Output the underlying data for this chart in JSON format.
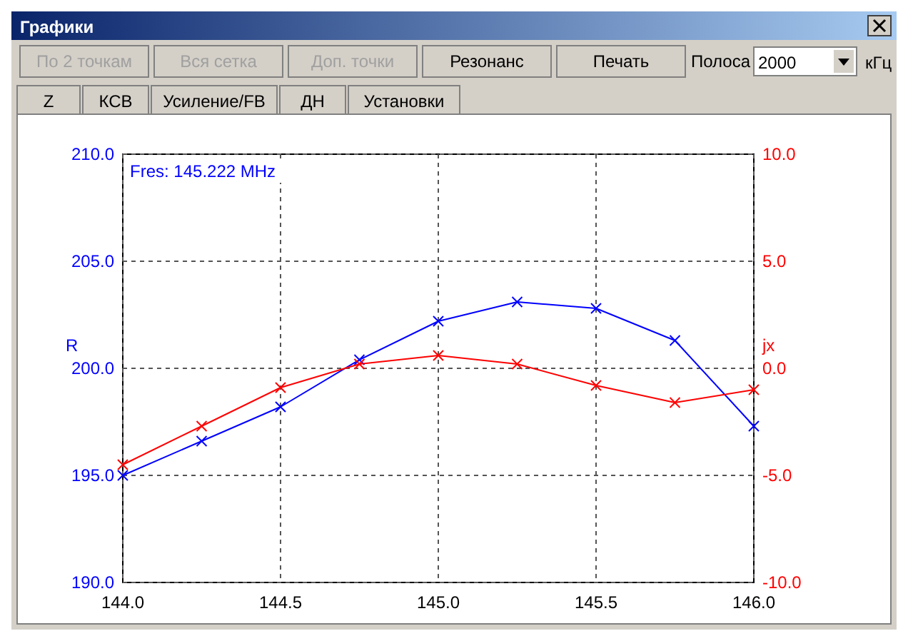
{
  "chart_data": {
    "type": "line",
    "title": "Графики",
    "annotations": [
      "По 2 точкам",
      "Вся сетка",
      "Доп. точки",
      "Резонанс",
      "Печать",
      "Полоса",
      "2000",
      "кГц",
      "Z",
      "КСВ",
      "Усиление/FB",
      "ДН",
      "Установки",
      "Fres: 145.222 MHz"
    ],
    "x": [
      144.0,
      144.25,
      144.5,
      144.75,
      145.0,
      145.25,
      145.5,
      145.75,
      146.0
    ],
    "series": [
      {
        "color": "#0000ff",
        "values": [
          195.0,
          196.6,
          198.2,
          200.4,
          202.2,
          203.1,
          202.8,
          201.3,
          197.3
        ]
      },
      {
        "color": "#ff0000",
        "axis": "y2",
        "values": [
          -4.5,
          -2.7,
          -0.9,
          0.2,
          0.6,
          0.2,
          -0.8,
          -1.6,
          -1.0
        ]
      }
    ],
    "ylabel": "R",
    "y2label": "jx",
    "xlim": [
      144,
      146
    ],
    "xticks": [
      {
        "value": 144,
        "label": "144.0"
      },
      {
        "value": 144.5,
        "label": "144.5"
      },
      {
        "value": 145,
        "label": "145.0"
      },
      {
        "value": 145.5,
        "label": "145.5"
      },
      {
        "value": 146,
        "label": "146.0"
      }
    ],
    "ylim": [
      190,
      210
    ],
    "yticks": [
      {
        "value": 190,
        "label": "190.0"
      },
      {
        "value": 195,
        "label": "195.0"
      },
      {
        "value": 200,
        "label": "200.0"
      },
      {
        "value": 205,
        "label": "205.0"
      },
      {
        "value": 210,
        "label": "210.0"
      }
    ],
    "y2lim": [
      -10,
      10
    ],
    "y2ticks": [
      {
        "value": -10,
        "label": "-10.0"
      },
      {
        "value": -5,
        "label": "-5.0"
      },
      {
        "value": 0,
        "label": "0.0"
      },
      {
        "value": 5,
        "label": "5.0"
      },
      {
        "value": 10,
        "label": "10.0"
      }
    ],
    "grid": true,
    "marker": "cross",
    "line_style": "solid"
  }
}
